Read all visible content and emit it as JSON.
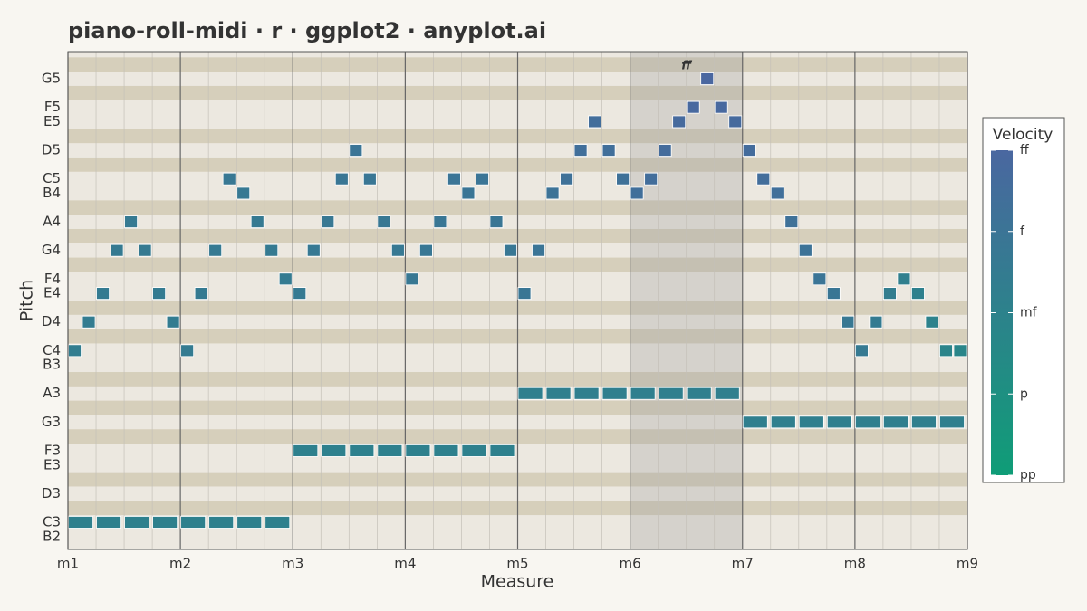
{
  "chart_data": {
    "type": "piano-roll",
    "title": "piano-roll-midi · r · ggplot2 · anyplot.ai",
    "x_label": "Measure",
    "y_label": "Pitch",
    "legend_title": "Velocity",
    "xlim": [
      1,
      9
    ],
    "xticks": [
      {
        "value": 1,
        "label": "m1"
      },
      {
        "value": 2,
        "label": "m2"
      },
      {
        "value": 3,
        "label": "m3"
      },
      {
        "value": 4,
        "label": "m4"
      },
      {
        "value": 5,
        "label": "m5"
      },
      {
        "value": 6,
        "label": "m6"
      },
      {
        "value": 7,
        "label": "m7"
      },
      {
        "value": 8,
        "label": "m8"
      },
      {
        "value": 9,
        "label": "m9"
      }
    ],
    "ylim": [
      46.1,
      80.9
    ],
    "yticks": [
      {
        "value": 47,
        "label": "B2"
      },
      {
        "value": 48,
        "label": "C3"
      },
      {
        "value": 50,
        "label": "D3"
      },
      {
        "value": 52,
        "label": "E3"
      },
      {
        "value": 53,
        "label": "F3"
      },
      {
        "value": 55,
        "label": "G3"
      },
      {
        "value": 57,
        "label": "A3"
      },
      {
        "value": 59,
        "label": "B3"
      },
      {
        "value": 60,
        "label": "C4"
      },
      {
        "value": 62,
        "label": "D4"
      },
      {
        "value": 64,
        "label": "E4"
      },
      {
        "value": 65,
        "label": "F4"
      },
      {
        "value": 67,
        "label": "G4"
      },
      {
        "value": 69,
        "label": "A4"
      },
      {
        "value": 71,
        "label": "B4"
      },
      {
        "value": 72,
        "label": "C5"
      },
      {
        "value": 74,
        "label": "D5"
      },
      {
        "value": 76,
        "label": "E5"
      },
      {
        "value": 77,
        "label": "F5"
      },
      {
        "value": 79,
        "label": "G5"
      }
    ],
    "velocity_ticks": [
      {
        "value": 32,
        "label": "pp"
      },
      {
        "value": 48,
        "label": "p"
      },
      {
        "value": 64,
        "label": "mf"
      },
      {
        "value": 80,
        "label": "f"
      },
      {
        "value": 96,
        "label": "ff"
      }
    ],
    "colorscale": [
      "#0f9d77",
      "#4a67a0"
    ],
    "highlight": [
      6,
      7
    ],
    "annotation": {
      "text": "ff",
      "x": 6.5,
      "y": 80
    },
    "start": [
      1,
      1.125,
      1.25,
      1.375,
      1.5,
      1.625,
      1.75,
      1.875,
      2,
      2.125,
      2.25,
      2.375,
      2.5,
      2.625,
      2.75,
      2.875,
      3,
      3.125,
      3.25,
      3.375,
      3.5,
      3.625,
      3.75,
      3.875,
      4,
      4.125,
      4.25,
      4.375,
      4.5,
      4.625,
      4.75,
      4.875,
      5,
      5.125,
      5.25,
      5.375,
      5.5,
      5.625,
      5.75,
      5.875,
      6,
      6.125,
      6.25,
      6.375,
      6.5,
      6.625,
      6.75,
      6.875,
      7,
      7.125,
      7.25,
      7.375,
      7.5,
      7.625,
      7.75,
      7.875,
      8,
      8.125,
      8.25,
      8.375,
      8.5,
      8.625,
      8.75,
      8.875,
      1,
      1.25,
      1.5,
      1.75,
      2,
      2.25,
      2.5,
      2.75,
      3,
      3.25,
      3.5,
      3.75,
      4,
      4.25,
      4.5,
      4.75,
      5,
      5.25,
      5.5,
      5.75,
      6,
      6.25,
      6.5,
      6.75,
      7,
      7.25,
      7.5,
      7.75,
      8,
      8.25,
      8.5,
      8.75
    ],
    "duration": [
      0.125,
      0.125,
      0.125,
      0.125,
      0.125,
      0.125,
      0.125,
      0.125,
      0.125,
      0.125,
      0.125,
      0.125,
      0.125,
      0.125,
      0.125,
      0.125,
      0.125,
      0.125,
      0.125,
      0.125,
      0.125,
      0.125,
      0.125,
      0.125,
      0.125,
      0.125,
      0.125,
      0.125,
      0.125,
      0.125,
      0.125,
      0.125,
      0.125,
      0.125,
      0.125,
      0.125,
      0.125,
      0.125,
      0.125,
      0.125,
      0.125,
      0.125,
      0.125,
      0.125,
      0.125,
      0.125,
      0.125,
      0.125,
      0.125,
      0.125,
      0.125,
      0.125,
      0.125,
      0.125,
      0.125,
      0.125,
      0.125,
      0.125,
      0.125,
      0.125,
      0.125,
      0.125,
      0.125,
      0.125,
      0.25,
      0.25,
      0.25,
      0.25,
      0.25,
      0.25,
      0.25,
      0.25,
      0.25,
      0.25,
      0.25,
      0.25,
      0.25,
      0.25,
      0.25,
      0.25,
      0.25,
      0.25,
      0.25,
      0.25,
      0.25,
      0.25,
      0.25,
      0.25,
      0.25,
      0.25,
      0.25,
      0.25,
      0.25,
      0.25,
      0.25,
      0.25
    ],
    "pitch": [
      60,
      62,
      64,
      67,
      69,
      67,
      64,
      62,
      60,
      64,
      67,
      72,
      71,
      69,
      67,
      65,
      64,
      67,
      69,
      72,
      74,
      72,
      69,
      67,
      65,
      67,
      69,
      72,
      71,
      72,
      69,
      67,
      64,
      67,
      71,
      72,
      74,
      76,
      74,
      72,
      71,
      72,
      74,
      76,
      77,
      79,
      77,
      76,
      74,
      72,
      71,
      69,
      67,
      65,
      64,
      62,
      60,
      62,
      64,
      65,
      64,
      62,
      60,
      60,
      48,
      48,
      48,
      48,
      48,
      48,
      48,
      48,
      53,
      53,
      53,
      53,
      53,
      53,
      53,
      53,
      57,
      57,
      57,
      57,
      57,
      57,
      57,
      57,
      55,
      55,
      55,
      55,
      55,
      55,
      55,
      55
    ],
    "velocity": [
      70,
      71,
      72,
      73,
      74,
      73,
      72,
      71,
      72,
      73,
      74,
      76,
      75,
      74,
      73,
      72,
      74,
      75,
      76,
      78,
      80,
      78,
      76,
      75,
      76,
      77,
      78,
      80,
      79,
      80,
      78,
      77,
      78,
      80,
      82,
      84,
      86,
      88,
      86,
      84,
      86,
      88,
      90,
      92,
      94,
      96,
      94,
      92,
      90,
      88,
      86,
      84,
      82,
      80,
      78,
      76,
      74,
      72,
      70,
      68,
      66,
      64,
      62,
      60,
      66,
      66,
      66,
      66,
      66,
      66,
      66,
      66,
      66,
      66,
      66,
      66,
      66,
      66,
      66,
      66,
      68,
      68,
      68,
      68,
      68,
      68,
      68,
      68,
      68,
      68,
      68,
      68,
      68,
      68,
      68,
      68
    ]
  }
}
